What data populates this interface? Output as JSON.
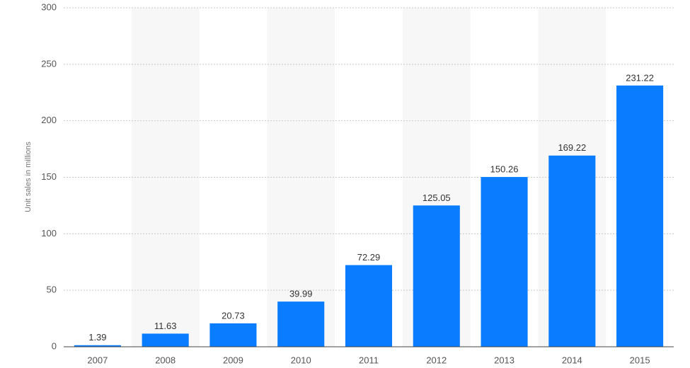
{
  "chart_data": {
    "type": "bar",
    "y_label": "Unit sales in millions",
    "categories": [
      "2007",
      "2008",
      "2009",
      "2010",
      "2011",
      "2012",
      "2013",
      "2014",
      "2015"
    ],
    "values": [
      1.39,
      11.63,
      20.73,
      39.99,
      72.29,
      125.05,
      150.26,
      169.22,
      231.22
    ],
    "color": "#0a7cff",
    "ylim": [
      0,
      300
    ],
    "yticks": [
      0,
      50,
      100,
      150,
      200,
      250,
      300
    ],
    "grid": true
  }
}
